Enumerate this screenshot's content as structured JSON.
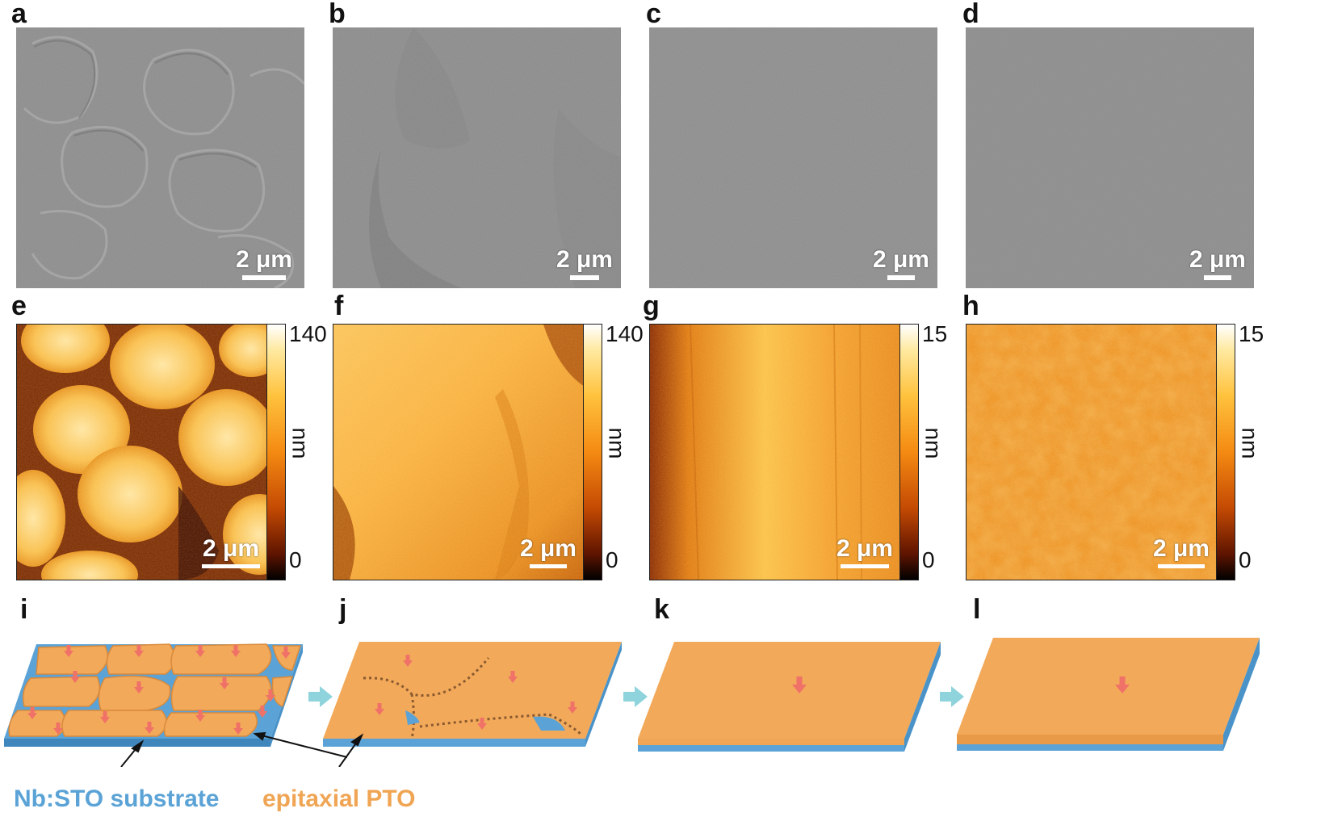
{
  "panel_labels": [
    "a",
    "b",
    "c",
    "d",
    "e",
    "f",
    "g",
    "h",
    "i",
    "j",
    "k",
    "l"
  ],
  "scale_bar": "2 μm",
  "colorbars": [
    {
      "max": "140",
      "min": "0",
      "unit": "nm"
    },
    {
      "max": "140",
      "min": "0",
      "unit": "nm"
    },
    {
      "max": "15",
      "min": "0",
      "unit": "nm"
    },
    {
      "max": "15",
      "min": "0",
      "unit": "nm"
    }
  ],
  "labels": {
    "substrate": "Nb:STO substrate",
    "film": "epitaxial PTO"
  },
  "colors": {
    "substrate": "#5ba3d6",
    "film": "#f0a554",
    "arrow": "#f07167",
    "transition_arrow": "#8fd3dc"
  }
}
